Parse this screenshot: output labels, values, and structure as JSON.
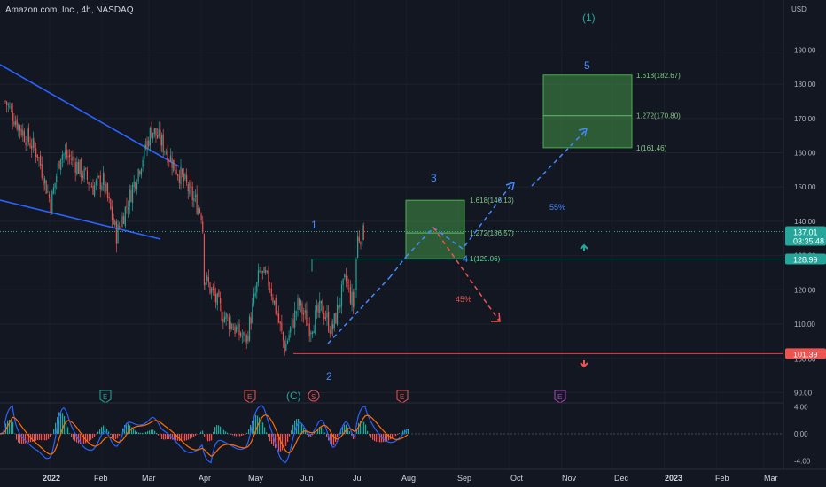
{
  "header": {
    "title": "Amazon.com, Inc., 4h, NASDAQ"
  },
  "currency_label": "USD",
  "price_badges": {
    "current": "137.01",
    "countdown": "03:35:48",
    "resistance": "128.99",
    "support": "101.39",
    "support_behind": "100.00"
  },
  "annotations": {
    "wave_1_big": "(1)",
    "wave_5": "5",
    "wave_3": "3",
    "wave_1": "1",
    "wave_4": "4",
    "wave_2": "2",
    "wave_c": "(C)",
    "prob_up": "55%",
    "prob_down": "45%",
    "fib_upper": [
      "1.618(182.67)",
      "1.272(170.80)",
      "1(161.46)"
    ],
    "fib_lower": [
      "1.618(146.13)",
      "1.272(136.57)",
      "1(129.06)"
    ]
  },
  "events": [
    {
      "label": "E",
      "kind": "earnings-green"
    },
    {
      "label": "E",
      "kind": "earnings-red"
    },
    {
      "label": "S",
      "kind": "split"
    },
    {
      "label": "E",
      "kind": "earnings-red"
    },
    {
      "label": "E",
      "kind": "earnings-purple"
    }
  ],
  "colors": {
    "background": "#131722",
    "up": "#26a69a",
    "down": "#ef5350",
    "trendline": "#2962ff",
    "fib_box": "#2e7d32",
    "resistance": "#22ab94",
    "support": "#f23645"
  },
  "chart_data": {
    "type": "candlestick",
    "title": "Amazon.com, Inc., 4h, NASDAQ",
    "y_axis_ticks": [
      90,
      100,
      110,
      120,
      130,
      140,
      150,
      160,
      170,
      180,
      190
    ],
    "y_axis_tick_labels": [
      "90.00",
      "",
      "110.00",
      "120.00",
      "130.00",
      "140.00",
      "150.00",
      "160.00",
      "170.00",
      "180.00",
      "190.00"
    ],
    "x_axis_labels": [
      "2022",
      "Feb",
      "Mar",
      "Apr",
      "May",
      "Jun",
      "Jul",
      "Aug",
      "Sep",
      "Oct",
      "Nov",
      "Dec",
      "2023",
      "Feb",
      "Mar"
    ],
    "price_path": [
      [
        "2022-01-01",
        175
      ],
      [
        "2022-01-10",
        167
      ],
      [
        "2022-01-20",
        160
      ],
      [
        "2022-01-28",
        145
      ],
      [
        "2022-02-03",
        160
      ],
      [
        "2022-02-10",
        158
      ],
      [
        "2022-02-22",
        150
      ],
      [
        "2022-02-28",
        152
      ],
      [
        "2022-03-08",
        136
      ],
      [
        "2022-03-15",
        146
      ],
      [
        "2022-03-29",
        167
      ],
      [
        "2022-04-05",
        162
      ],
      [
        "2022-04-20",
        149
      ],
      [
        "2022-04-28",
        142
      ],
      [
        "2022-04-29",
        124
      ],
      [
        "2022-05-10",
        113
      ],
      [
        "2022-05-24",
        105
      ],
      [
        "2022-06-01",
        125
      ],
      [
        "2022-06-07",
        122
      ],
      [
        "2022-06-16",
        103
      ],
      [
        "2022-06-24",
        116
      ],
      [
        "2022-07-01",
        109
      ],
      [
        "2022-07-08",
        115
      ],
      [
        "2022-07-14",
        108
      ],
      [
        "2022-07-22",
        123
      ],
      [
        "2022-07-27",
        115
      ],
      [
        "2022-07-29",
        135
      ],
      [
        "2022-08-02",
        137
      ]
    ],
    "current_price": 137.01,
    "resistance": 128.99,
    "support": 101.39,
    "fib_targets": [
      {
        "level": "1.618",
        "value": 182.67
      },
      {
        "level": "1.272",
        "value": 170.8
      },
      {
        "level": "1",
        "value": 161.46
      },
      {
        "level": "1.618",
        "value": 146.13
      },
      {
        "level": "1.272",
        "value": 136.57
      },
      {
        "level": "1",
        "value": 129.06
      }
    ],
    "scenarios": [
      {
        "label": "55%",
        "path": [
          [
            "2022-07-29",
            129
          ],
          [
            "2022-08-15",
            138
          ],
          [
            "2022-09-01",
            131
          ],
          [
            "2022-09-25",
            151
          ]
        ]
      },
      {
        "label": "45%",
        "path": [
          [
            "2022-08-15",
            138
          ],
          [
            "2022-09-01",
            129
          ],
          [
            "2022-09-30",
            111
          ]
        ]
      }
    ],
    "oscillator": {
      "y_axis_ticks": [
        4,
        0,
        -4
      ],
      "y_axis_tick_labels": [
        "4.00",
        "0.00",
        "-4.00"
      ]
    }
  }
}
